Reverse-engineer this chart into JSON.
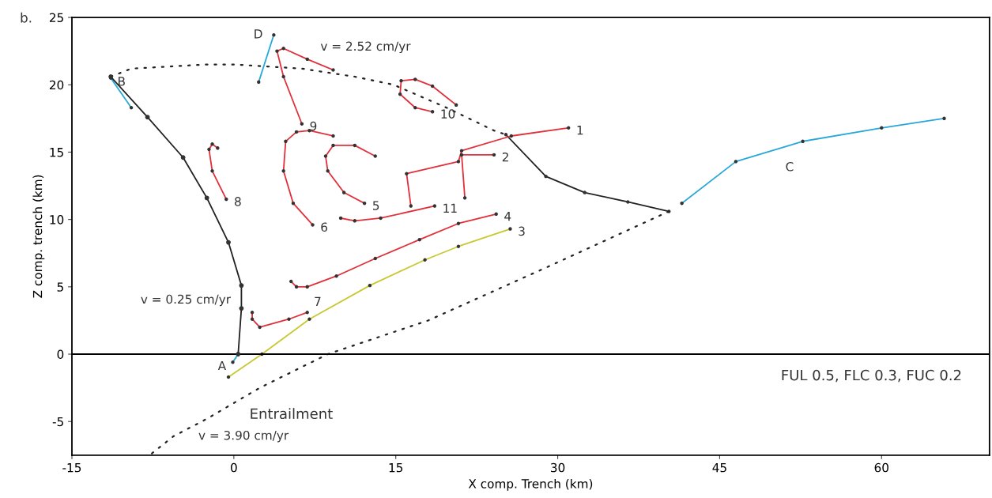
{
  "chart_data": {
    "type": "line",
    "xlabel": "X comp. Trench (km)",
    "ylabel": "Z comp. trench (km)",
    "xlim": [
      -15,
      70
    ],
    "ylim": [
      -7.5,
      25
    ],
    "xticks": [
      -15,
      0,
      15,
      30,
      45,
      60
    ],
    "yticks": [
      -5,
      0,
      5,
      10,
      15,
      20,
      25
    ],
    "grid": false,
    "legend": false,
    "marker": "circle",
    "ref_lines": [
      {
        "axis": "y",
        "value": 0,
        "color": "#000000"
      }
    ],
    "series": [
      {
        "color": "#222222",
        "line_style": "solid",
        "x": [
          -11.4,
          -8.0,
          -4.7,
          -2.5,
          -0.5,
          0.7,
          0.7,
          0.4
        ],
        "values": [
          20.6,
          17.6,
          14.6,
          11.6,
          8.3,
          5.1,
          3.4,
          0
        ]
      },
      {
        "color": "#222222",
        "line_style": "solid",
        "x": [
          25.2,
          28.9,
          32.5,
          36.5,
          40.3
        ],
        "values": [
          16.3,
          13.2,
          12.0,
          11.3,
          10.6
        ]
      },
      {
        "color": "#222222",
        "line_style": "dotted",
        "marker": "none",
        "x": [
          -11.4,
          -9.5,
          -2.7,
          0.2,
          6.3,
          11.2,
          14.8,
          19.7,
          24.1,
          25.2
        ],
        "values": [
          20.6,
          21.2,
          21.5,
          21.5,
          21.2,
          20.6,
          20.0,
          18.3,
          16.6,
          16.3
        ]
      },
      {
        "color": "#222222",
        "line_style": "dotted",
        "marker": "none",
        "x": [
          40.3,
          29.4,
          18.0,
          8.7,
          2.4,
          -2.5,
          -5.6,
          -7.8
        ],
        "values": [
          10.6,
          6.6,
          2.5,
          0,
          -2.5,
          -4.8,
          -6.1,
          -7.5
        ]
      },
      {
        "name": "C",
        "color": "#29a8d8",
        "line_style": "solid",
        "x": [
          41.5,
          46.5,
          52.7,
          60.0,
          65.8
        ],
        "values": [
          11.2,
          14.3,
          15.8,
          16.8,
          17.5
        ]
      },
      {
        "name": "D",
        "color": "#29a8d8",
        "line_style": "solid",
        "x": [
          2.3,
          3.7
        ],
        "values": [
          20.2,
          23.7
        ]
      },
      {
        "name": "B",
        "color": "#29a8d8",
        "line_style": "solid",
        "x": [
          -9.5,
          -11.4
        ],
        "values": [
          18.3,
          20.5
        ]
      },
      {
        "name": "A",
        "color": "#29a8d8",
        "line_style": "solid",
        "x": [
          0.4,
          -0.1
        ],
        "values": [
          0,
          -0.6
        ]
      },
      {
        "name": "3",
        "color": "#c8c832",
        "line_style": "solid",
        "x": [
          -0.5,
          2.6,
          7.0,
          12.6,
          17.7,
          20.8,
          25.6
        ],
        "values": [
          -1.7,
          0,
          2.6,
          5.1,
          7.0,
          8.0,
          9.3
        ]
      },
      {
        "name": "1",
        "color": "#e0303a",
        "line_style": "solid",
        "x": [
          16.4,
          16.0,
          20.8,
          21.1,
          25.7,
          31.0
        ],
        "values": [
          11.0,
          13.4,
          14.3,
          15.1,
          16.2,
          16.8
        ]
      },
      {
        "name": "2",
        "color": "#e0303a",
        "line_style": "solid",
        "x": [
          21.4,
          21.1,
          24.1
        ],
        "values": [
          11.6,
          14.8,
          14.8
        ]
      },
      {
        "name": "4",
        "color": "#e0303a",
        "line_style": "solid",
        "x": [
          5.3,
          5.8,
          6.8,
          9.5,
          13.1,
          17.2,
          20.8,
          24.3
        ],
        "values": [
          5.4,
          5.0,
          5.0,
          5.8,
          7.1,
          8.5,
          9.7,
          10.4
        ]
      },
      {
        "name": "5",
        "color": "#e0303a",
        "line_style": "solid",
        "x": [
          13.1,
          11.2,
          9.2,
          8.5,
          8.7,
          10.2,
          12.1
        ],
        "values": [
          14.7,
          15.5,
          15.5,
          14.7,
          13.6,
          12.0,
          11.2
        ]
      },
      {
        "name": "6",
        "color": "#e0303a",
        "line_style": "solid",
        "x": [
          9.2,
          7.0,
          5.8,
          4.8,
          4.6,
          5.5,
          7.3
        ],
        "values": [
          16.2,
          16.6,
          16.5,
          15.8,
          13.6,
          11.2,
          9.6
        ]
      },
      {
        "name": "7",
        "color": "#e0303a",
        "line_style": "solid",
        "x": [
          1.7,
          1.7,
          2.4,
          5.1,
          6.8
        ],
        "values": [
          3.1,
          2.6,
          2.0,
          2.6,
          3.1
        ]
      },
      {
        "name": "8",
        "color": "#e0303a",
        "line_style": "solid",
        "x": [
          -1.5,
          -2.0,
          -2.3,
          -2.0,
          -0.7
        ],
        "values": [
          15.3,
          15.6,
          15.2,
          13.6,
          11.5
        ]
      },
      {
        "name": "9",
        "color": "#e0303a",
        "line_style": "solid",
        "x": [
          9.2,
          6.8,
          4.6,
          4.0,
          4.6,
          6.3
        ],
        "values": [
          21.1,
          21.9,
          22.7,
          22.5,
          20.6,
          17.1
        ]
      },
      {
        "name": "10",
        "color": "#e0303a",
        "line_style": "solid",
        "x": [
          20.6,
          18.4,
          16.8,
          15.5,
          15.4,
          16.8,
          18.4
        ],
        "values": [
          18.5,
          19.9,
          20.4,
          20.3,
          19.3,
          18.3,
          18.0
        ]
      },
      {
        "name": "11",
        "color": "#e0303a",
        "line_style": "solid",
        "x": [
          9.9,
          11.2,
          13.6,
          18.6
        ],
        "values": [
          10.1,
          9.9,
          10.1,
          11.0
        ]
      }
    ],
    "annotations": [
      "b.",
      "v = 2.52 cm/yr",
      "v = 0.25 cm/yr",
      "Entrailment",
      "v = 3.90 cm/yr",
      "FUL 0.5, FLC 0.3, FUC 0.2"
    ]
  }
}
